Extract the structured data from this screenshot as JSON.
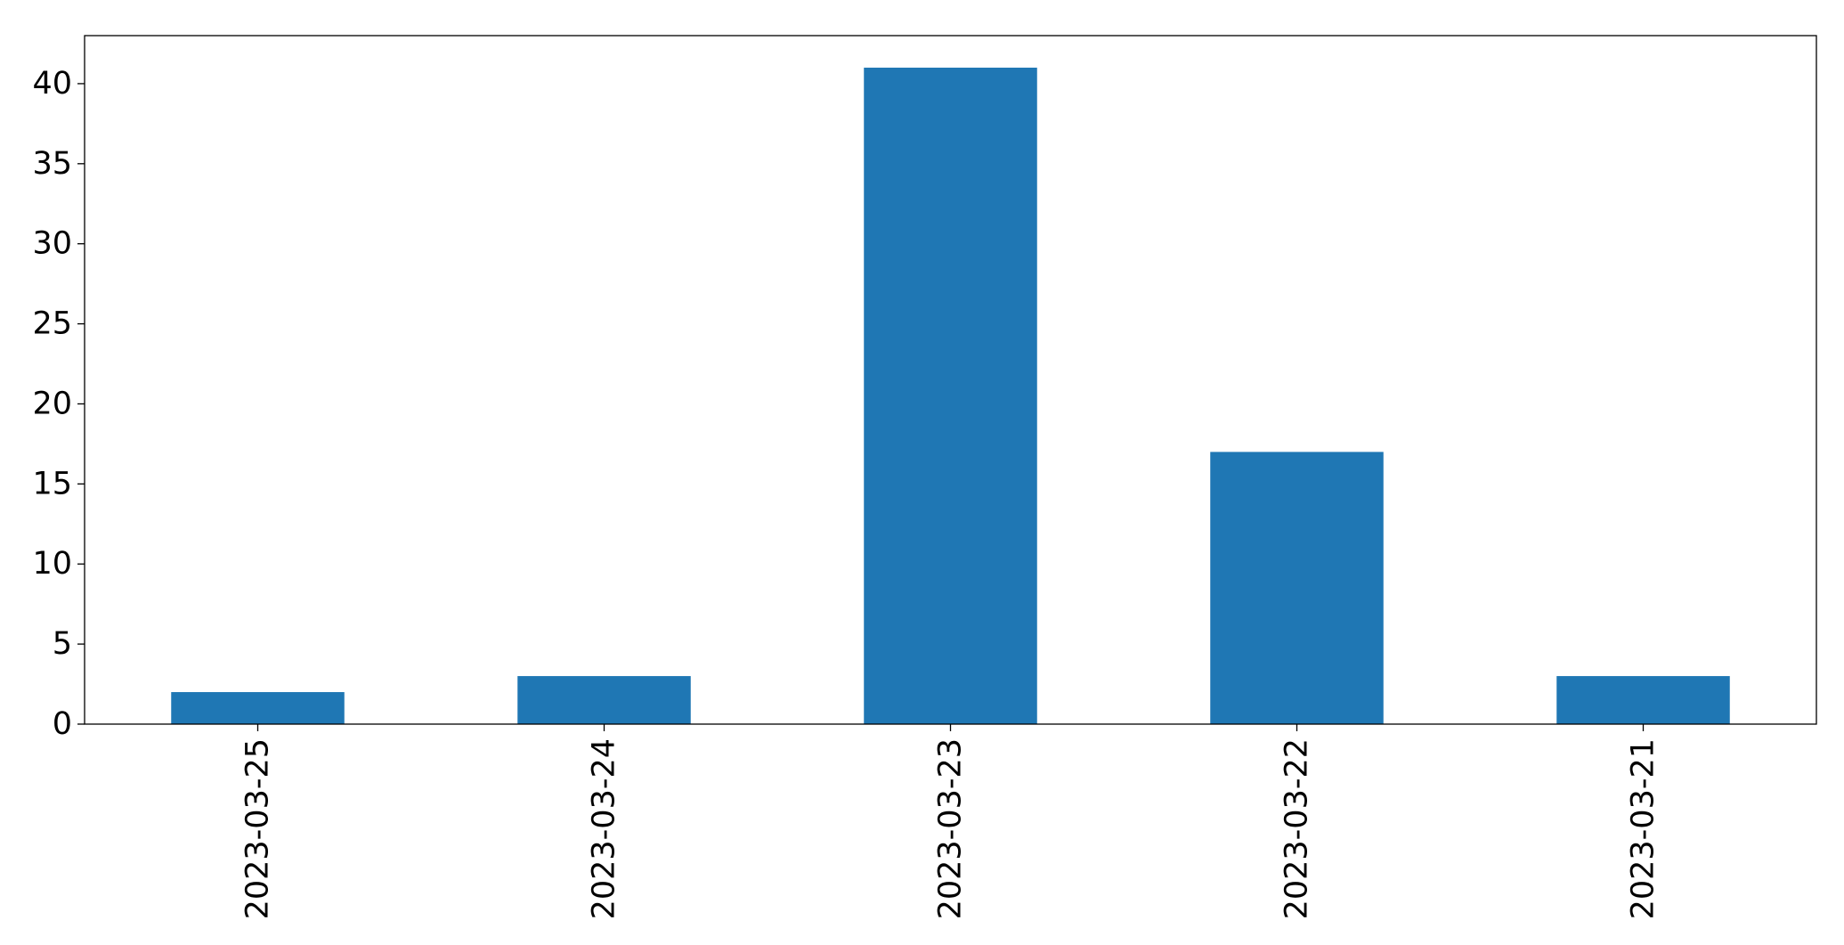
{
  "chart_data": {
    "type": "bar",
    "title": "",
    "xlabel": "",
    "ylabel": "",
    "categories": [
      "2023-03-25",
      "2023-03-24",
      "2023-03-23",
      "2023-03-22",
      "2023-03-21"
    ],
    "values": [
      2,
      3,
      41,
      17,
      3
    ],
    "ylim": [
      0,
      43
    ],
    "yticks": [
      "0",
      "5",
      "10",
      "15",
      "20",
      "25",
      "30",
      "35",
      "40"
    ],
    "bar_color": "#1f77b4",
    "grid": false,
    "legend": "none"
  }
}
